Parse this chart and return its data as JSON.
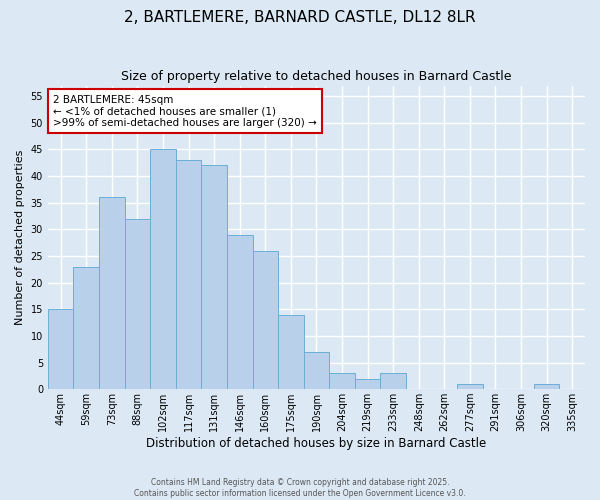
{
  "title": "2, BARTLEMERE, BARNARD CASTLE, DL12 8LR",
  "subtitle": "Size of property relative to detached houses in Barnard Castle",
  "xlabel": "Distribution of detached houses by size in Barnard Castle",
  "ylabel": "Number of detached properties",
  "bin_labels": [
    "44sqm",
    "59sqm",
    "73sqm",
    "88sqm",
    "102sqm",
    "117sqm",
    "131sqm",
    "146sqm",
    "160sqm",
    "175sqm",
    "190sqm",
    "204sqm",
    "219sqm",
    "233sqm",
    "248sqm",
    "262sqm",
    "277sqm",
    "291sqm",
    "306sqm",
    "320sqm",
    "335sqm"
  ],
  "bar_values": [
    15,
    23,
    36,
    32,
    45,
    43,
    42,
    29,
    26,
    14,
    7,
    3,
    2,
    3,
    0,
    0,
    1,
    0,
    0,
    1,
    0
  ],
  "bar_color": "#b8d0ea",
  "bar_edge_color": "#6baed6",
  "ylim": [
    0,
    57
  ],
  "yticks": [
    0,
    5,
    10,
    15,
    20,
    25,
    30,
    35,
    40,
    45,
    50,
    55
  ],
  "annotation_title": "2 BARTLEMERE: 45sqm",
  "annotation_line1": "← <1% of detached houses are smaller (1)",
  "annotation_line2": ">99% of semi-detached houses are larger (320) →",
  "annotation_box_color": "#ffffff",
  "annotation_box_edge": "#cc0000",
  "footer_line1": "Contains HM Land Registry data © Crown copyright and database right 2025.",
  "footer_line2": "Contains public sector information licensed under the Open Government Licence v3.0.",
  "background_color": "#dce9f5",
  "plot_bg_color": "#dce9f5",
  "grid_color": "#ffffff",
  "title_fontsize": 11,
  "subtitle_fontsize": 9,
  "ylabel_fontsize": 8,
  "xlabel_fontsize": 8.5,
  "tick_fontsize": 7,
  "ann_fontsize": 7.5
}
